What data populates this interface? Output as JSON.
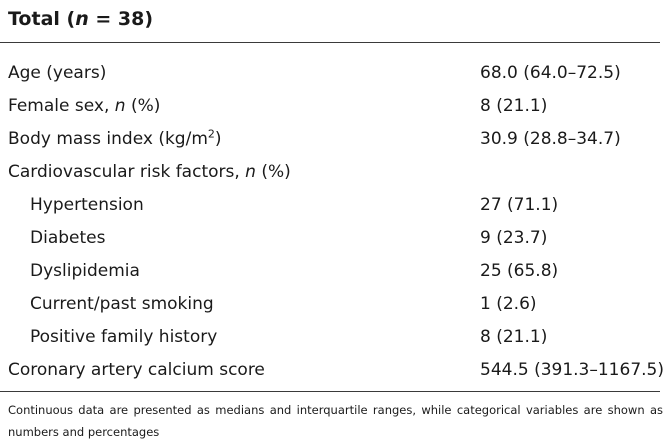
{
  "title": {
    "prefix": "Total (",
    "n_symbol": "n",
    "equals_value": " = 38)"
  },
  "rows": [
    {
      "label": "Age (years)",
      "value": "68.0 (64.0–72.5)"
    },
    {
      "label_before": "Female sex, ",
      "label_italic": "n",
      "label_after": " (%)",
      "value": "8 (21.1)"
    },
    {
      "label": "Body mass index (kg/m",
      "label_sup": "2",
      "label_close": ")",
      "value": "30.9 (28.8–34.7)"
    },
    {
      "label_before": "Cardiovascular risk factors, ",
      "label_italic": "n",
      "label_after": " (%)",
      "value": ""
    },
    {
      "label": "Hypertension",
      "value": "27 (71.1)"
    },
    {
      "label": "Diabetes",
      "value": "9 (23.7)"
    },
    {
      "label": "Dyslipidemia",
      "value": "25 (65.8)"
    },
    {
      "label": "Current/past smoking",
      "value": "1 (2.6)"
    },
    {
      "label": "Positive family history",
      "value": "8 (21.1)"
    },
    {
      "label": "Coronary artery calcium score",
      "value": "544.5 (391.3–1167.5)"
    }
  ],
  "footnote": "Continuous data are presented as medians and interquartile ranges, while categorical variables are shown as numbers and percentages"
}
